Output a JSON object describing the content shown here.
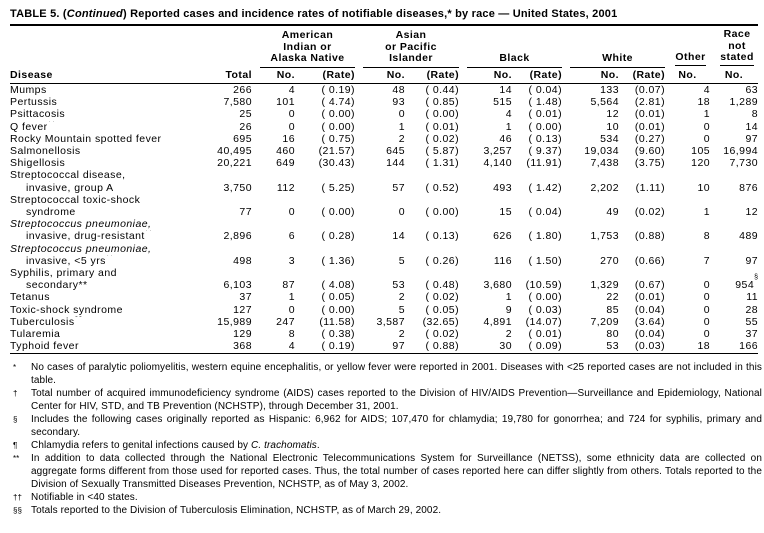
{
  "title": {
    "part1": "TABLE 5. (",
    "continued": "Continued",
    "part2": ") Reported cases and incidence rates of notifiable diseases,* by race — United States, 2001"
  },
  "header": {
    "disease": "Disease",
    "total": "Total",
    "sub": {
      "no": "No.",
      "rate": "(Rate)"
    },
    "groups": [
      {
        "name": "american-indian-or-alaska-native",
        "lines": [
          "American",
          "Indian or",
          "Alaska Native"
        ]
      },
      {
        "name": "asian-or-pacific-islander",
        "lines": [
          "Asian",
          "or Pacific Islander"
        ]
      },
      {
        "name": "black",
        "lines": [
          "Black"
        ]
      },
      {
        "name": "white",
        "lines": [
          "White"
        ]
      },
      {
        "name": "other",
        "lines": [
          "Other"
        ]
      },
      {
        "name": "race-not-stated",
        "lines": [
          "Race",
          "not",
          "stated"
        ]
      }
    ]
  },
  "table": {
    "rows": [
      {
        "label": "Mumps",
        "cells": [
          "266",
          "4",
          "( 0.19)",
          "48",
          "( 0.44)",
          "14",
          "( 0.04)",
          "133",
          "(0.07)",
          "4",
          "63"
        ]
      },
      {
        "label": "Pertussis",
        "cells": [
          "7,580",
          "101",
          "( 4.74)",
          "93",
          "( 0.85)",
          "515",
          "( 1.48)",
          "5,564",
          "(2.81)",
          "18",
          "1,289"
        ]
      },
      {
        "label": "Psittacosis",
        "cells": [
          "25",
          "0",
          "( 0.00)",
          "0",
          "( 0.00)",
          "4",
          "( 0.01)",
          "12",
          "(0.01)",
          "1",
          "8"
        ]
      },
      {
        "label": "Q fever",
        "sup": "††",
        "cells": [
          "26",
          "0",
          "( 0.00)",
          "1",
          "( 0.01)",
          "1",
          "( 0.00)",
          "10",
          "(0.01)",
          "0",
          "14"
        ]
      },
      {
        "label": "Rocky Mountain spotted fever",
        "cells": [
          "695",
          "16",
          "( 0.75)",
          "2",
          "( 0.02)",
          "46",
          "( 0.13)",
          "534",
          "(0.27)",
          "0",
          "97"
        ]
      },
      {
        "label": "Salmonellosis",
        "cells": [
          "40,495",
          "460",
          "(21.57)",
          "645",
          "( 5.87)",
          "3,257",
          "( 9.37)",
          "19,034",
          "(9.60)",
          "105",
          "16,994"
        ]
      },
      {
        "label": "Shigellosis",
        "cells": [
          "20,221",
          "649",
          "(30.43)",
          "144",
          "( 1.31)",
          "4,140",
          "(11.91)",
          "7,438",
          "(3.75)",
          "120",
          "7,730"
        ]
      },
      {
        "label": "Streptococcal disease,",
        "cells": null
      },
      {
        "label": "invasive, group A",
        "indent": true,
        "cells": [
          "3,750",
          "112",
          "( 5.25)",
          "57",
          "( 0.52)",
          "493",
          "( 1.42)",
          "2,202",
          "(1.11)",
          "10",
          "876"
        ]
      },
      {
        "label": "Streptococcal toxic-shock",
        "cells": null
      },
      {
        "label": "syndrome",
        "indent": true,
        "cells": [
          "77",
          "0",
          "( 0.00)",
          "0",
          "( 0.00)",
          "15",
          "( 0.04)",
          "49",
          "(0.02)",
          "1",
          "12"
        ]
      },
      {
        "label": "Streptococcus pneumoniae,",
        "italic": true,
        "cells": null
      },
      {
        "label": "invasive, drug-resistant",
        "sup": "††",
        "indent": true,
        "cells": [
          "2,896",
          "6",
          "( 0.28)",
          "14",
          "( 0.13)",
          "626",
          "( 1.80)",
          "1,753",
          "(0.88)",
          "8",
          "489"
        ]
      },
      {
        "label": "Streptococcus pneumoniae,",
        "italic": true,
        "cells": null
      },
      {
        "label": "invasive, <5 yrs",
        "sup": "††",
        "indent": true,
        "cells": [
          "498",
          "3",
          "( 1.36)",
          "5",
          "( 0.26)",
          "116",
          "( 1.50)",
          "270",
          "(0.66)",
          "7",
          "97"
        ]
      },
      {
        "label": "Syphilis, primary and",
        "cells": null
      },
      {
        "label": "secondary**",
        "indent": true,
        "cells": [
          "6,103",
          "87",
          "( 4.08)",
          "53",
          "( 0.48)",
          "3,680",
          "(10.59)",
          "1,329",
          "(0.67)",
          "0",
          {
            "v": "954",
            "sup": "§"
          }
        ]
      },
      {
        "label": "Tetanus",
        "cells": [
          "37",
          "1",
          "( 0.05)",
          "2",
          "( 0.02)",
          "1",
          "( 0.00)",
          "22",
          "(0.01)",
          "0",
          "11"
        ]
      },
      {
        "label": "Toxic-shock syndrome",
        "cells": [
          "127",
          "0",
          "( 0.00)",
          "5",
          "( 0.05)",
          "9",
          "( 0.03)",
          "85",
          "(0.04)",
          "0",
          "28"
        ]
      },
      {
        "label": "Tuberculosis",
        "sup": "§§",
        "cells": [
          "15,989",
          "247",
          "(11.58)",
          "3,587",
          "(32.65)",
          "4,891",
          "(14.07)",
          "7,209",
          "(3.64)",
          "0",
          "55"
        ]
      },
      {
        "label": "Tularemia",
        "cells": [
          "129",
          "8",
          "( 0.38)",
          "2",
          "( 0.02)",
          "2",
          "( 0.01)",
          "80",
          "(0.04)",
          "0",
          "37"
        ]
      },
      {
        "label": "Typhoid fever",
        "cells": [
          "368",
          "4",
          "( 0.19)",
          "97",
          "( 0.88)",
          "30",
          "( 0.09)",
          "53",
          "(0.03)",
          "18",
          "166"
        ]
      }
    ]
  },
  "footnotes": [
    {
      "marker": "*",
      "parts": [
        {
          "t": "No cases of  paralytic poliomyelitis, western equine encephalitis, or yellow fever were reported in 2001. Diseases with <25 reported cases are not included in this table."
        }
      ]
    },
    {
      "marker": "†",
      "parts": [
        {
          "t": "Total number of acquired immunodeficiency syndrome (AIDS) cases reported to the Division of HIV/AIDS Prevention—Surveillance and Epidemiology, National Center for HIV, STD, and TB Prevention (NCHSTP), through December 31, 2001."
        }
      ]
    },
    {
      "marker": "§",
      "parts": [
        {
          "t": "Includes the following cases originally reported as Hispanic: 6,962 for AIDS; 107,470 for chlamydia; 19,780 for gonorrhea; and 724 for syphilis, primary and secondary."
        }
      ]
    },
    {
      "marker": "¶",
      "parts": [
        {
          "t": "Chlamydia refers to genital infections caused by "
        },
        {
          "t": "C. trachomatis",
          "italic": true
        },
        {
          "t": "."
        }
      ]
    },
    {
      "marker": "**",
      "parts": [
        {
          "t": "In addition to data collected through the National Electronic Telecommunications System for Surveillance (NETSS), some ethnicity data are collected on aggregate forms different from those used for reported cases.  Thus, the total number of cases reported here can differ slightly from others.   Totals reported to the Division of Sexually Transmitted Diseases Prevention, NCHSTP, as of May 3, 2002."
        }
      ]
    },
    {
      "marker": "††",
      "parts": [
        {
          "t": "Notifiable in <40 states."
        }
      ]
    },
    {
      "marker": "§§",
      "parts": [
        {
          "t": "Totals reported to the Division of Tuberculosis Elimination, NCHSTP, as of March 29, 2002."
        }
      ]
    }
  ],
  "colors": {
    "text": "#000000",
    "background": "#ffffff",
    "rule": "#000000"
  }
}
